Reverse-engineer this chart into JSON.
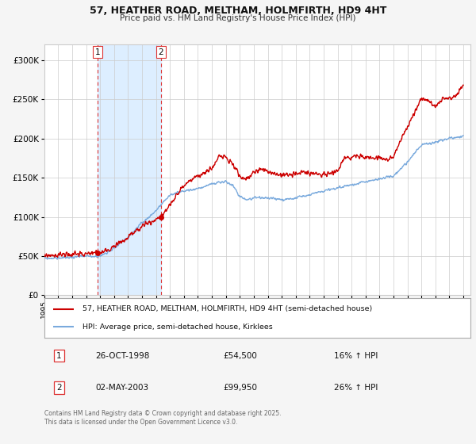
{
  "title_line1": "57, HEATHER ROAD, MELTHAM, HOLMFIRTH, HD9 4HT",
  "title_line2": "Price paid vs. HM Land Registry's House Price Index (HPI)",
  "ylim": [
    0,
    320000
  ],
  "yticks": [
    0,
    50000,
    100000,
    150000,
    200000,
    250000,
    300000
  ],
  "sale1_date": "26-OCT-1998",
  "sale1_price": 54500,
  "sale1_hpi_pct": "16%",
  "sale2_date": "02-MAY-2003",
  "sale2_price": 99950,
  "sale2_hpi_pct": "26%",
  "sale1_x": 1998.82,
  "sale2_x": 2003.34,
  "legend1_label": "57, HEATHER ROAD, MELTHAM, HOLMFIRTH, HD9 4HT (semi-detached house)",
  "legend2_label": "HPI: Average price, semi-detached house, Kirklees",
  "line1_color": "#cc0000",
  "line2_color": "#7aaadd",
  "shade_color": "#ddeeff",
  "vline_color": "#dd3333",
  "footer_text": "Contains HM Land Registry data © Crown copyright and database right 2025.\nThis data is licensed under the Open Government Licence v3.0.",
  "background_color": "#f5f5f5",
  "plot_background": "#ffffff",
  "grid_color": "#cccccc"
}
